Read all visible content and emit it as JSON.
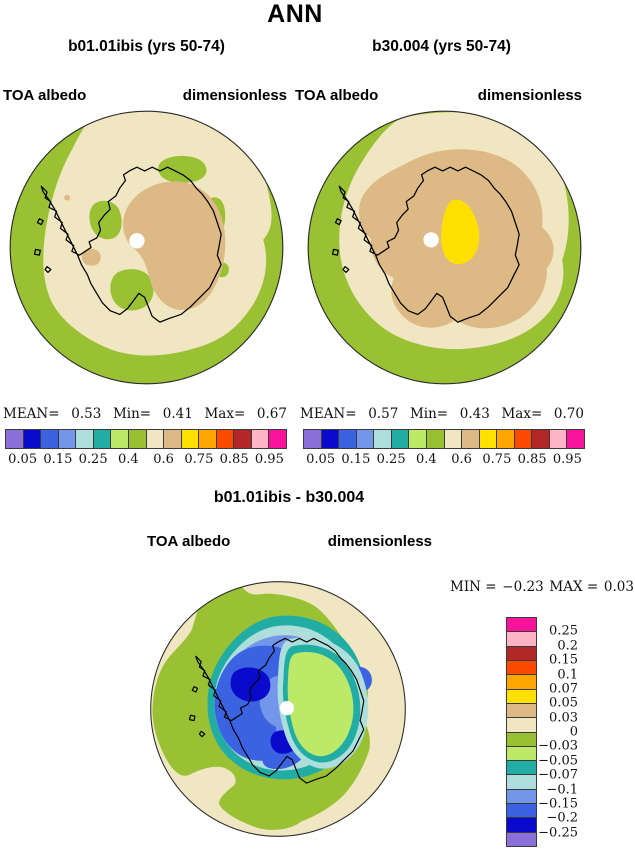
{
  "title": "ANN",
  "panels": {
    "left": {
      "subtitle": "b01.01ibis (yrs 50-74)",
      "field": "TOA albedo",
      "units": "dimensionless",
      "stats": {
        "mean_label": "MEAN=",
        "mean": "0.53",
        "min_label": "Min=",
        "min": "0.41",
        "max_label": "Max=",
        "max": "0.67"
      }
    },
    "right": {
      "subtitle": "b30.004 (yrs 50-74)",
      "field": "TOA albedo",
      "units": "dimensionless",
      "stats": {
        "mean_label": "MEAN=",
        "mean": "0.57",
        "min_label": "Min=",
        "min": "0.43",
        "max_label": "Max=",
        "max": "0.70"
      }
    }
  },
  "colorbar": {
    "colors": [
      "#8C70D9",
      "#0A0ACC",
      "#3B62E0",
      "#7396EB",
      "#AEDEDC",
      "#21ADA4",
      "#BDE968",
      "#99BF33",
      "#F0E6C2",
      "#DDBA85",
      "#FFE000",
      "#FFA500",
      "#FC4A00",
      "#B22828",
      "#FFB5C5",
      "#F7149B"
    ],
    "tick_labels": [
      "0.05",
      "0.15",
      "0.25",
      "0.4",
      "0.6",
      "0.75",
      "0.85",
      "0.95"
    ]
  },
  "diff": {
    "title": "b01.01ibis - b30.004",
    "field": "TOA albedo",
    "units": "dimensionless",
    "stats": {
      "min_label": "MIN =",
      "min": "−0.23",
      "max_label": "MAX =",
      "max": "0.03"
    },
    "colorbar_labels": [
      "0.25",
      "0.2",
      "0.15",
      "0.1",
      "0.07",
      "0.05",
      "0.03",
      "0",
      "−0.03",
      "−0.05",
      "−0.07",
      "−0.1",
      "−0.15",
      "−0.2",
      "−0.25"
    ]
  },
  "colors": {
    "ocean_green": "#99C133",
    "shelf_beige": "#F0E6C2",
    "plateau_tan": "#DDBA85",
    "high_yellow": "#FFE000",
    "diff_light_green": "#BDE968",
    "diff_teal": "#21ADA4",
    "diff_pale_cyan": "#AEDEDC",
    "diff_light_blue": "#7396EB",
    "diff_medium_blue": "#3B62E0",
    "diff_dark_blue": "#0A0ACC",
    "coastline": "#000000",
    "circle_border": "#2b2b2b",
    "pole_hole": "#FFFFFF"
  },
  "chart_data": [
    {
      "type": "heatmap",
      "title": "b01.01ibis (yrs 50-74)",
      "variable": "TOA albedo",
      "units": "dimensionless",
      "projection": "south polar stereographic (Antarctica)",
      "stats": {
        "mean": 0.53,
        "min": 0.41,
        "max": 0.67
      },
      "contour_levels": [
        0.05,
        0.1,
        0.15,
        0.2,
        0.25,
        0.3,
        0.4,
        0.5,
        0.6,
        0.7,
        0.75,
        0.8,
        0.85,
        0.9,
        0.95
      ],
      "labeled_ticks": [
        0.05,
        0.15,
        0.25,
        0.4,
        0.6,
        0.75,
        0.85,
        0.95
      ],
      "legend_position": "bottom",
      "notes": "ocean ring ~0.3-0.4 (green), ice shelves/sea ice ~0.4-0.5 (beige), East Antarctic plateau ~0.5-0.6 (tan)"
    },
    {
      "type": "heatmap",
      "title": "b30.004 (yrs 50-74)",
      "variable": "TOA albedo",
      "units": "dimensionless",
      "projection": "south polar stereographic (Antarctica)",
      "stats": {
        "mean": 0.57,
        "min": 0.43,
        "max": 0.7
      },
      "contour_levels": [
        0.05,
        0.1,
        0.15,
        0.2,
        0.25,
        0.3,
        0.4,
        0.5,
        0.6,
        0.7,
        0.75,
        0.8,
        0.85,
        0.9,
        0.95
      ],
      "labeled_ticks": [
        0.05,
        0.15,
        0.25,
        0.4,
        0.6,
        0.75,
        0.85,
        0.95
      ],
      "legend_position": "bottom",
      "notes": "continent ~0.5-0.6 (tan) with plateau maximum 0.7-0.75 (yellow) near pole"
    },
    {
      "type": "heatmap",
      "title": "b01.01ibis - b30.004",
      "variable": "TOA albedo difference",
      "units": "dimensionless",
      "projection": "south polar stereographic (Antarctica)",
      "stats": {
        "min": -0.23,
        "max": 0.03
      },
      "contour_levels": [
        -0.25,
        -0.2,
        -0.15,
        -0.1,
        -0.07,
        -0.05,
        -0.03,
        0,
        0.03,
        0.05,
        0.07,
        0.1,
        0.15,
        0.2,
        0.25
      ],
      "legend_position": "right",
      "notes": "negative differences (blues, down to -0.25) ring the coast/West Antarctica; interior plateau -0.03 to -0.05 (light green); surrounding ocean 0 to 0.03 (beige)"
    }
  ]
}
